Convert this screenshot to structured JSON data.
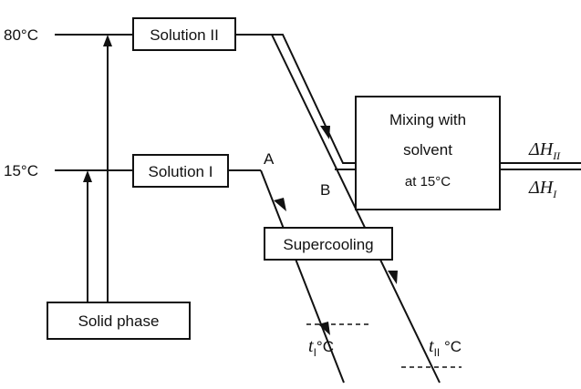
{
  "temperatures": {
    "high": "80°C",
    "low": "15°C"
  },
  "boxes": {
    "solution_2": "Solution II",
    "solution_1": "Solution I",
    "mixing": [
      "Mixing with",
      "solvent",
      "at 15°C"
    ],
    "supercooling": "Supercooling",
    "solid": "Solid phase"
  },
  "points": {
    "a": "A",
    "b": "B"
  },
  "enthalpies": {
    "h2": {
      "symbol": "ΔH",
      "sub": "II"
    },
    "h1": {
      "symbol": "ΔH",
      "sub": "I"
    }
  },
  "final_temps": {
    "t1": {
      "symbol": "t",
      "sub": "I",
      "unit": "°C"
    },
    "t2": {
      "symbol": "t",
      "sub": "II",
      "unit": " °C"
    }
  }
}
